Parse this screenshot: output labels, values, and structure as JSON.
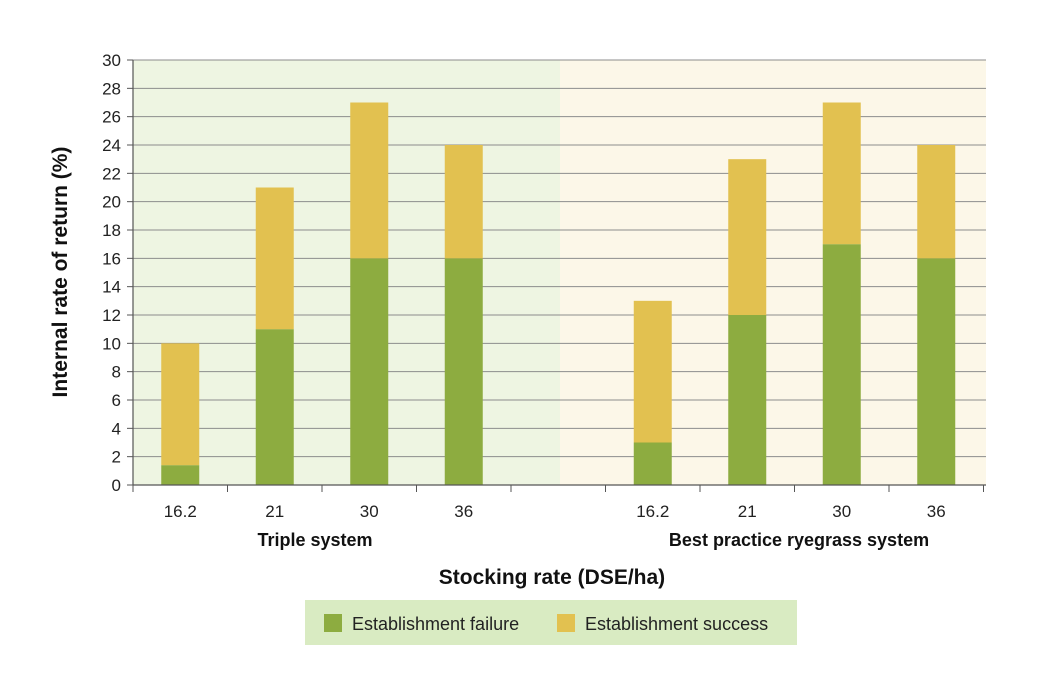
{
  "chart_data": {
    "type": "bar",
    "stacked": true,
    "xlabel": "Stocking rate (DSE/ha)",
    "ylabel": "Internal rate of return (%)",
    "ylim": [
      0,
      30
    ],
    "yticks": [
      0,
      2,
      4,
      6,
      8,
      10,
      12,
      14,
      16,
      18,
      20,
      22,
      24,
      26,
      28,
      30
    ],
    "grid": true,
    "legend_position": "bottom-center",
    "groups": [
      {
        "name": "Triple system",
        "background": "#eef5e2",
        "categories": [
          "16.2",
          "21",
          "30",
          "36"
        ],
        "series": [
          {
            "name": "Establishment failure",
            "values": [
              1.4,
              11,
              16,
              16
            ]
          },
          {
            "name": "Establishment success",
            "values": [
              8.6,
              10,
              11,
              8
            ]
          }
        ]
      },
      {
        "name": "Best practice ryegrass system",
        "background": "#fcf7e8",
        "categories": [
          "16.2",
          "21",
          "30",
          "36"
        ],
        "series": [
          {
            "name": "Establishment failure",
            "values": [
              3,
              12,
              17,
              16
            ]
          },
          {
            "name": "Establishment success",
            "values": [
              10,
              11,
              10,
              8
            ]
          }
        ]
      }
    ],
    "colors": {
      "Establishment failure": "#8dac40",
      "Establishment success": "#e2c150"
    },
    "legend": {
      "background": "#d9ebc2",
      "items": [
        "Establishment failure",
        "Establishment success"
      ]
    }
  }
}
